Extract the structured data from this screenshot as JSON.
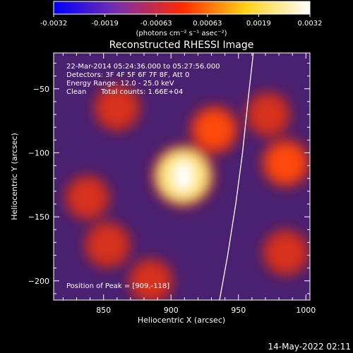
{
  "colorbar": {
    "ticks": [
      "-0.0032",
      "-0.0019",
      "-0.00063",
      "0.00063",
      "0.0019",
      "0.0032"
    ],
    "units_label": "(photons cm⁻² s⁻¹ asec⁻²)",
    "colors": [
      "#0000ff",
      "#7a2fa8",
      "#ff2a00",
      "#ffd21a",
      "#ffffff"
    ]
  },
  "chart_data": {
    "type": "heatmap",
    "title": "Reconstructed RHESSI Image",
    "xlabel": "Heliocentric X (arcsec)",
    "ylabel": "Heliocentric Y (arcsec)",
    "xlim": [
      813,
      1003
    ],
    "ylim": [
      -215,
      -22
    ],
    "x_ticks": [
      850,
      900,
      950,
      1000
    ],
    "y_ticks": [
      -50,
      -100,
      -150,
      -200
    ],
    "info_lines": [
      "22-Mar-2014 05:24:36.000 to 05:27:56.000",
      "Detectors: 3F 4F 5F 6F 7F 8F, Att 0",
      "Energy Range: 12.0 - 25.0 keV"
    ],
    "clean_label": "Clean",
    "total_counts": "Total counts: 1.66E+04",
    "peak_label": "Position of Peak = [909,-118]",
    "peak": [
      909,
      -118
    ],
    "limb_curve": [
      [
        936,
        -215
      ],
      [
        942,
        -180
      ],
      [
        948,
        -140
      ],
      [
        953,
        -100
      ],
      [
        957,
        -60
      ],
      [
        961,
        -22
      ]
    ],
    "sources": [
      {
        "x": 909,
        "y": -118,
        "value": 1.0
      },
      {
        "x": 932,
        "y": -82,
        "value": 0.55
      },
      {
        "x": 860,
        "y": -65,
        "value": 0.45
      },
      {
        "x": 985,
        "y": -108,
        "value": 0.55
      },
      {
        "x": 853,
        "y": -172,
        "value": 0.45
      },
      {
        "x": 985,
        "y": -178,
        "value": 0.45
      },
      {
        "x": 972,
        "y": -70,
        "value": 0.4
      },
      {
        "x": 885,
        "y": -200,
        "value": 0.4
      },
      {
        "x": 838,
        "y": -135,
        "value": 0.4
      }
    ]
  },
  "footer": {
    "date": "14-May-2022 02:11"
  }
}
